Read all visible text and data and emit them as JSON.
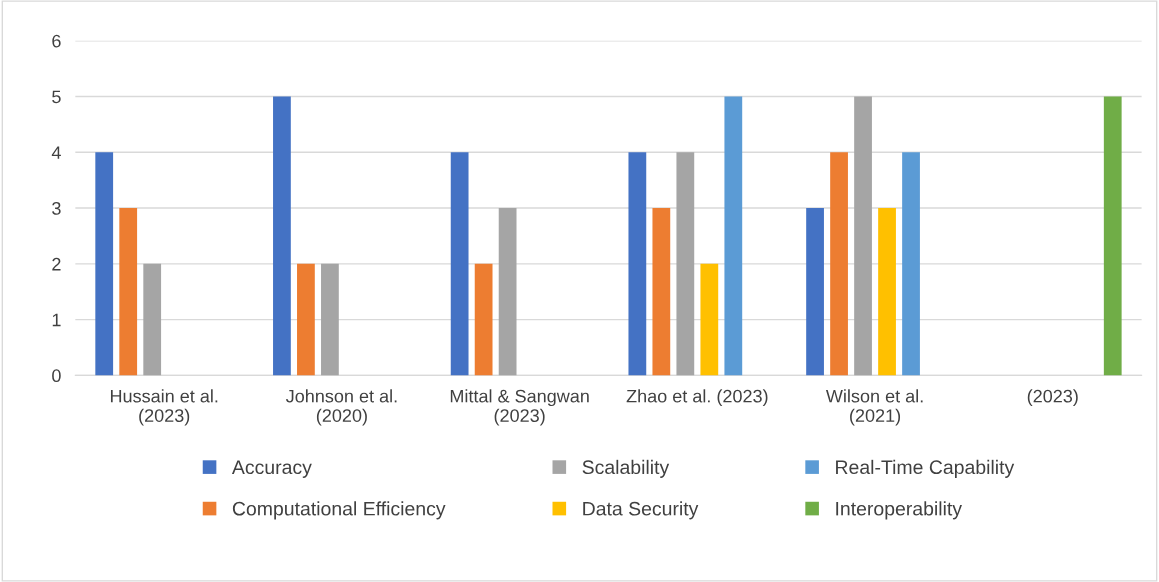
{
  "chart_data": {
    "type": "bar",
    "categories": [
      "Hussain et al.\n(2023)",
      "Johnson et al.\n(2020)",
      "Mittal & Sangwan\n(2023)",
      "Zhao et al. (2023)",
      "Wilson et al.\n(2021)",
      "(2023)"
    ],
    "series": [
      {
        "name": "Accuracy",
        "color": "#4472c4",
        "values": [
          4,
          5,
          4,
          4,
          3,
          null
        ]
      },
      {
        "name": "Computational Efficiency",
        "color": "#ed7d31",
        "values": [
          3,
          2,
          2,
          3,
          4,
          null
        ]
      },
      {
        "name": "Scalability",
        "color": "#a5a5a5",
        "values": [
          2,
          2,
          3,
          4,
          5,
          null
        ]
      },
      {
        "name": "Data Security",
        "color": "#ffc000",
        "values": [
          null,
          null,
          null,
          2,
          3,
          null
        ]
      },
      {
        "name": "Real-Time Capability",
        "color": "#5b9bd5",
        "values": [
          null,
          null,
          null,
          5,
          4,
          null
        ]
      },
      {
        "name": "Interoperability",
        "color": "#70ad47",
        "values": [
          null,
          null,
          null,
          null,
          null,
          5
        ]
      }
    ],
    "ylim": [
      0,
      6
    ],
    "yticks": [
      0,
      1,
      2,
      3,
      4,
      5,
      6
    ],
    "grid": "y",
    "legend": "bottom"
  }
}
